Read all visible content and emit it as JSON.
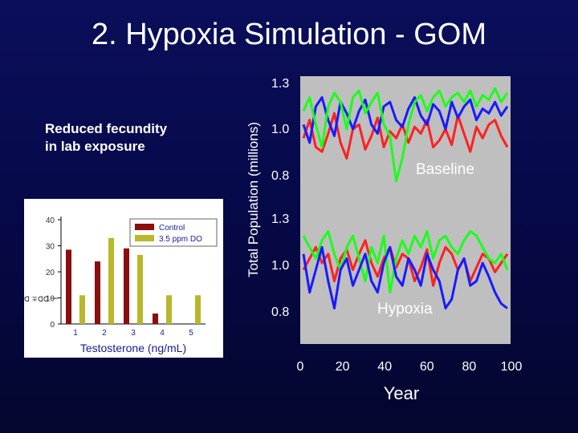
{
  "slide": {
    "title": "2. Hypoxia Simulation - GOM",
    "side_text_line1": "Reduced fecundity",
    "side_text_line2": "in lab exposure"
  },
  "colors": {
    "background": "#06094a",
    "panel": "#bfbfbf",
    "red": "#ff2020",
    "green": "#1aff1a",
    "blue": "#1a1aff",
    "control": "#8b0d0d",
    "do": "#b8b82a"
  },
  "chart_data": [
    {
      "type": "line",
      "ylabel": "Total Population (millions)",
      "xlabel": "Year",
      "xticks": [
        "0",
        "20",
        "40",
        "60",
        "80",
        "100"
      ],
      "xlim": [
        0,
        100
      ],
      "panels": [
        {
          "label": "Baseline",
          "yticks": [
            "1.3",
            "1.0",
            "0.8"
          ],
          "ylim": [
            0.75,
            1.3
          ],
          "series": [
            {
              "color": "#ff2020",
              "values": [
                1.04,
                1.12,
                1.0,
                0.98,
                1.06,
                1.15,
                1.02,
                0.95,
                1.08,
                1.1,
                0.99,
                1.05,
                1.13,
                1.0,
                1.07,
                1.04,
                1.1,
                1.02,
                1.09,
                1.06,
                1.12,
                1.0,
                1.03,
                1.08,
                1.01,
                1.14,
                1.06,
                0.98,
                1.09,
                1.04,
                1.1,
                1.12,
                1.05,
                1.0
              ]
            },
            {
              "color": "#1a1aff",
              "values": [
                1.1,
                1.02,
                1.18,
                1.22,
                1.12,
                1.05,
                1.2,
                1.15,
                1.08,
                1.16,
                1.21,
                1.1,
                1.06,
                1.18,
                1.2,
                1.12,
                1.09,
                1.17,
                1.22,
                1.14,
                1.1,
                1.19,
                1.16,
                1.08,
                1.2,
                1.13,
                1.18,
                1.21,
                1.12,
                1.17,
                1.15,
                1.2,
                1.14,
                1.18
              ]
            },
            {
              "color": "#1aff1a",
              "values": [
                1.16,
                1.22,
                1.1,
                1.0,
                1.18,
                1.24,
                1.2,
                1.08,
                1.22,
                1.25,
                1.15,
                1.2,
                1.24,
                1.1,
                1.05,
                0.85,
                0.95,
                1.1,
                1.2,
                1.23,
                1.16,
                1.22,
                1.25,
                1.18,
                1.22,
                1.24,
                1.2,
                1.25,
                1.18,
                1.23,
                1.21,
                1.26,
                1.2,
                1.24
              ]
            }
          ]
        },
        {
          "label": "Hypoxia",
          "yticks": [
            "1.3",
            "1.0",
            "0.8"
          ],
          "ylim": [
            0.75,
            1.3
          ],
          "series": [
            {
              "color": "#ff2020",
              "values": [
                1.05,
                1.1,
                1.15,
                1.08,
                1.12,
                1.0,
                1.1,
                1.14,
                1.05,
                1.12,
                1.18,
                1.08,
                1.02,
                1.1,
                1.15,
                1.06,
                1.12,
                1.1,
                1.0,
                1.06,
                1.14,
                0.98,
                1.08,
                1.15,
                1.12,
                1.05,
                1.1,
                1.0,
                1.06,
                1.12,
                1.1,
                1.04,
                1.08,
                1.12
              ]
            },
            {
              "color": "#1aff1a",
              "values": [
                1.2,
                1.15,
                1.1,
                1.18,
                1.22,
                1.12,
                1.05,
                1.15,
                1.2,
                1.1,
                1.0,
                1.15,
                1.08,
                1.2,
                0.95,
                1.1,
                1.18,
                1.12,
                1.2,
                1.15,
                1.22,
                1.1,
                1.18,
                1.2,
                1.15,
                1.12,
                1.18,
                1.22,
                1.2,
                1.15,
                1.1,
                1.08,
                1.12,
                1.05
              ]
            },
            {
              "color": "#1a1aff",
              "values": [
                1.12,
                0.95,
                1.05,
                1.15,
                1.0,
                0.88,
                1.05,
                1.1,
                0.98,
                1.05,
                1.12,
                1.0,
                0.95,
                1.08,
                1.15,
                1.02,
                0.98,
                1.1,
                1.05,
                0.98,
                1.12,
                1.05,
                1.0,
                0.88,
                0.92,
                1.05,
                1.1,
                0.98,
                1.0,
                1.08,
                1.02,
                0.95,
                0.9,
                0.88
              ]
            }
          ]
        }
      ]
    },
    {
      "type": "bar",
      "xlabel": "Testosterone (ng/mL)",
      "categories": [
        "1",
        "2",
        "3",
        "4",
        "5"
      ],
      "yticks": [
        "40",
        "30",
        "20",
        "10",
        "0"
      ],
      "ylim": [
        0,
        40
      ],
      "y_annotation": "ꓷ ∓ꓷꓷ",
      "series": [
        {
          "name": "Control",
          "values": [
            28.5,
            24,
            29,
            4,
            0
          ]
        },
        {
          "name": "3.5 ppm DO",
          "values": [
            11,
            33,
            26.5,
            11,
            11
          ]
        }
      ]
    }
  ]
}
